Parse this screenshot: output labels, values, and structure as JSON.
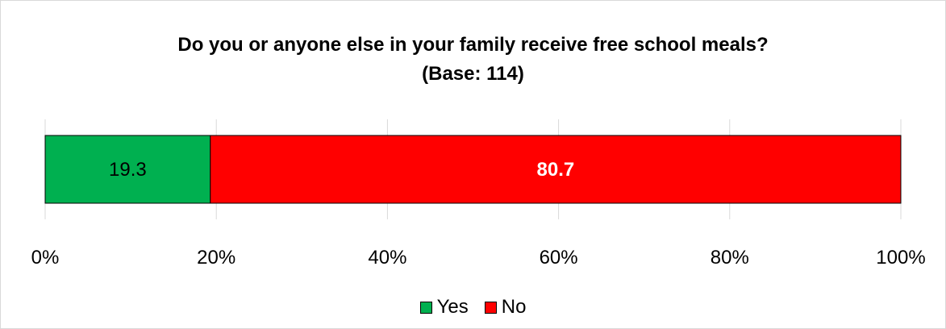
{
  "chart_data": {
    "type": "bar",
    "orientation": "horizontal",
    "stacked": true,
    "title": "Do you or anyone else in your family receive free school meals?",
    "subtitle": "(Base: 114)",
    "xlabel": "",
    "ylabel": "",
    "xlim": [
      0,
      100
    ],
    "ticks": [
      "0%",
      "20%",
      "40%",
      "60%",
      "80%",
      "100%"
    ],
    "tick_values": [
      0,
      20,
      40,
      60,
      80,
      100
    ],
    "grid": true,
    "legend_position": "bottom",
    "series": [
      {
        "name": "Yes",
        "values": [
          19.3
        ],
        "color": "#00b050",
        "label": "19.3",
        "label_color": "#000000",
        "label_bold": false
      },
      {
        "name": "No",
        "values": [
          80.7
        ],
        "color": "#ff0000",
        "label": "80.7",
        "label_color": "#ffffff",
        "label_bold": true
      }
    ]
  }
}
